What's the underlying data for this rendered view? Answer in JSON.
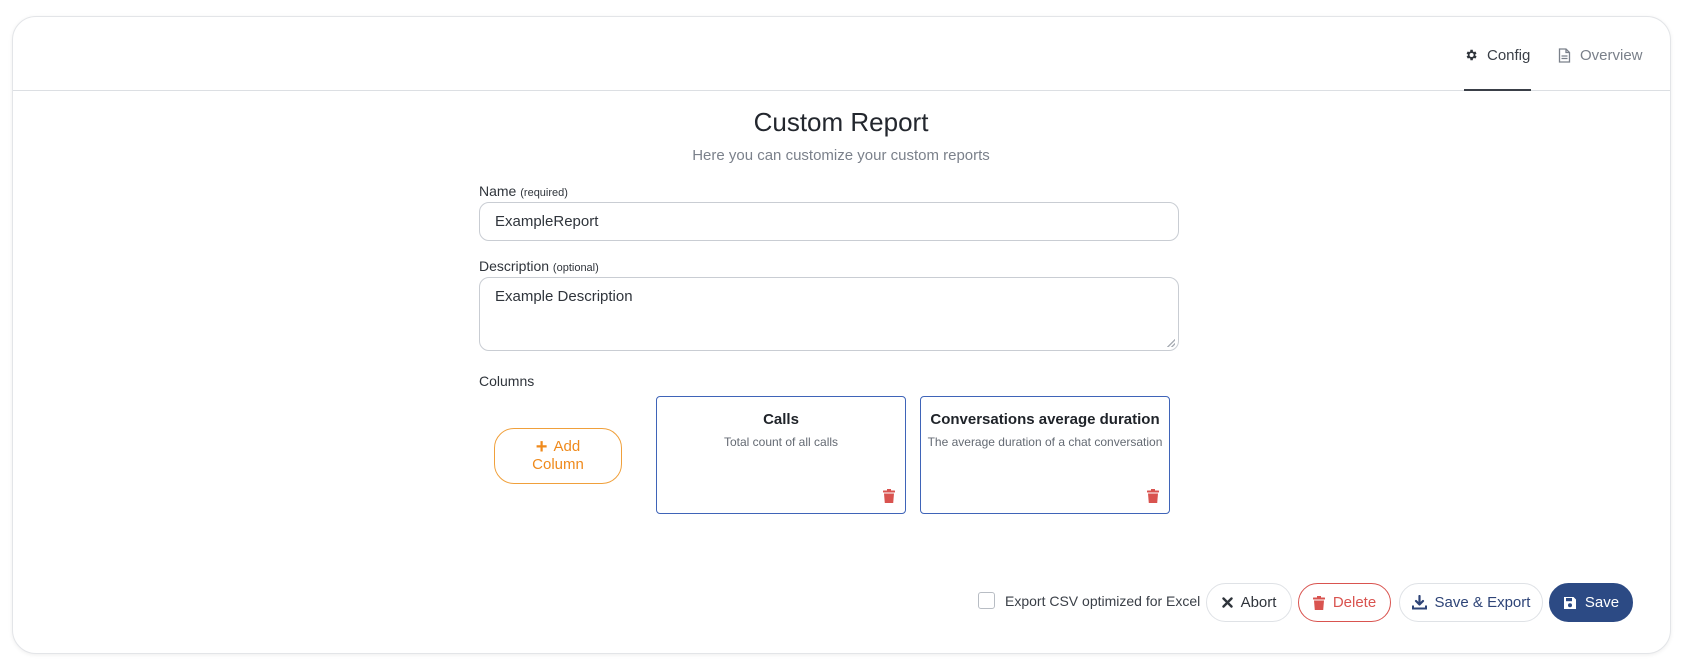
{
  "tabs": {
    "config": {
      "label": "Config",
      "icon": "gear-icon",
      "active": true
    },
    "overview": {
      "label": "Overview",
      "icon": "document-icon",
      "active": false
    }
  },
  "header": {
    "title": "Custom Report",
    "subtitle": "Here you can customize your custom reports"
  },
  "form": {
    "name": {
      "label": "Name",
      "hint": "(required)",
      "value": "ExampleReport"
    },
    "description": {
      "label": "Description",
      "hint": "(optional)",
      "value": "Example Description"
    },
    "columns_label": "Columns",
    "add_column": {
      "line1": "Add",
      "line2": "Column"
    },
    "columns": [
      {
        "title": "Calls",
        "description": "Total count of all calls"
      },
      {
        "title": "Conversations average duration",
        "description": "The average duration of a chat conversation"
      }
    ]
  },
  "footer": {
    "export_checkbox": {
      "label": "Export CSV optimized for Excel",
      "checked": false
    },
    "abort_label": "Abort",
    "delete_label": "Delete",
    "save_export_label": "Save & Export",
    "save_label": "Save"
  },
  "colors": {
    "accent_orange": "#ef8a1c",
    "primary_blue": "#2c4a84",
    "column_border": "#3f64b8",
    "danger_red": "#d9534f"
  }
}
